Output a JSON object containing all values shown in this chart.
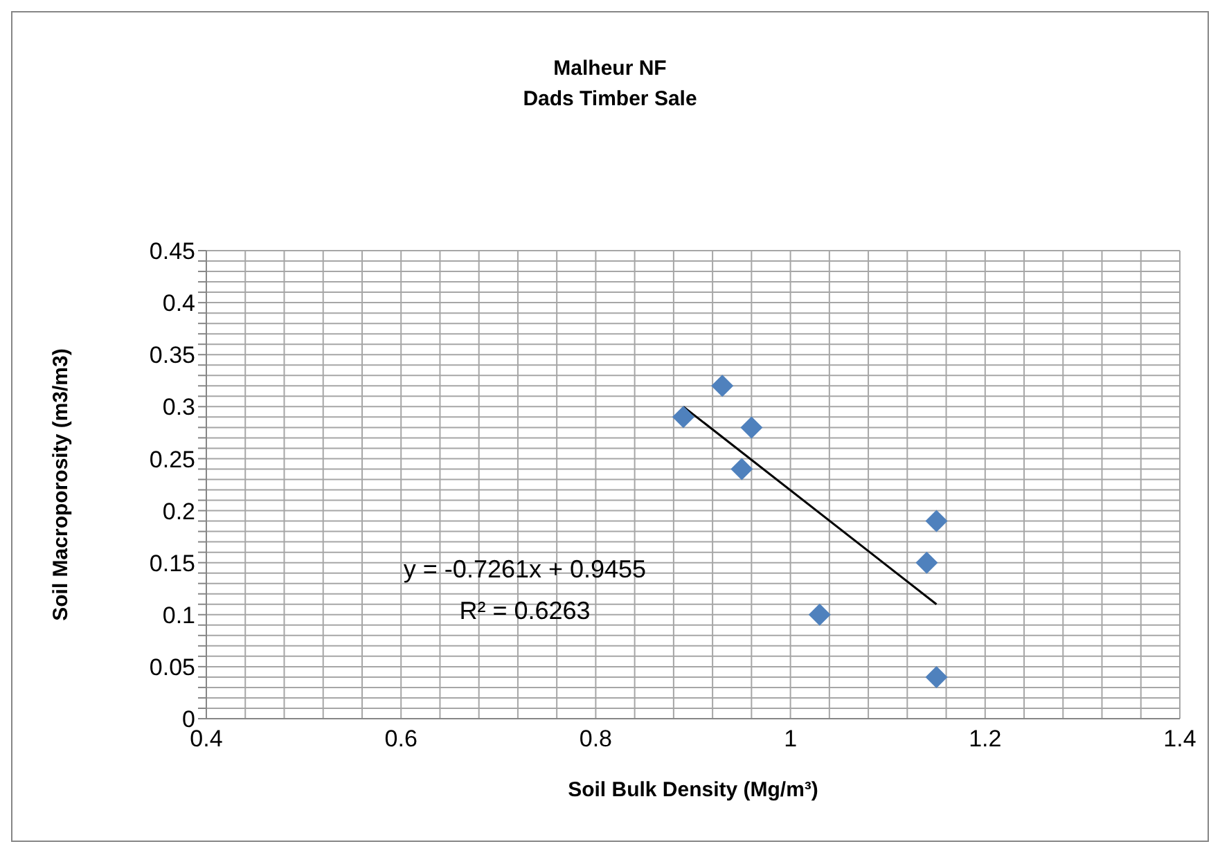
{
  "chart_data": {
    "type": "scatter",
    "title": "Malheur NF",
    "subtitle": "Dads Timber Sale",
    "xlabel": "Soil Bulk Density (Mg/m³)",
    "ylabel": "Soil Macroporosity (m3/m3)",
    "annotations": [
      "y = -0.7261x + 0.9455",
      "R² = 0.6263"
    ],
    "series": [
      {
        "type": "scatter",
        "color": "#4f81bd",
        "x": [
          0.89,
          0.93,
          0.96,
          0.95,
          1.15,
          1.14,
          1.03,
          1.15
        ],
        "values": [
          0.29,
          0.32,
          0.28,
          0.24,
          0.19,
          0.15,
          0.1,
          0.04
        ]
      },
      {
        "type": "line",
        "color": "#000000",
        "marker": "none",
        "x": [
          0.89,
          1.15
        ],
        "values": [
          0.3,
          0.11
        ]
      }
    ],
    "xlim": [
      0.4,
      1.4
    ],
    "xticks": [
      0.4,
      {
        "value": 0.44,
        "label": null
      },
      {
        "value": 0.48,
        "label": null
      },
      {
        "value": 0.52,
        "label": null
      },
      {
        "value": 0.56,
        "label": null
      },
      0.6,
      {
        "value": 0.64,
        "label": null
      },
      {
        "value": 0.68,
        "label": null
      },
      {
        "value": 0.72,
        "label": null
      },
      {
        "value": 0.76,
        "label": null
      },
      0.8,
      {
        "value": 0.84,
        "label": null
      },
      {
        "value": 0.88,
        "label": null
      },
      {
        "value": 0.92,
        "label": null
      },
      {
        "value": 0.96,
        "label": null
      },
      1,
      {
        "value": 1.04,
        "label": null
      },
      {
        "value": 1.08,
        "label": null
      },
      {
        "value": 1.12,
        "label": null
      },
      {
        "value": 1.16,
        "label": null
      },
      1.2,
      {
        "value": 1.24,
        "label": null
      },
      {
        "value": 1.28,
        "label": null
      },
      {
        "value": 1.32,
        "label": null
      },
      {
        "value": 1.36,
        "label": null
      },
      1.4
    ],
    "ylim": [
      0,
      0.45
    ],
    "yticks": [
      0,
      {
        "value": 0.01,
        "label": null
      },
      {
        "value": 0.02,
        "label": null
      },
      {
        "value": 0.03,
        "label": null
      },
      {
        "value": 0.04,
        "label": null
      },
      0.05,
      {
        "value": 0.06,
        "label": null
      },
      {
        "value": 0.07,
        "label": null
      },
      {
        "value": 0.08,
        "label": null
      },
      {
        "value": 0.09,
        "label": null
      },
      0.1,
      {
        "value": 0.11,
        "label": null
      },
      {
        "value": 0.12,
        "label": null
      },
      {
        "value": 0.13,
        "label": null
      },
      {
        "value": 0.14,
        "label": null
      },
      0.15,
      {
        "value": 0.16,
        "label": null
      },
      {
        "value": 0.17,
        "label": null
      },
      {
        "value": 0.18,
        "label": null
      },
      {
        "value": 0.19,
        "label": null
      },
      0.2,
      {
        "value": 0.21,
        "label": null
      },
      {
        "value": 0.22,
        "label": null
      },
      {
        "value": 0.23,
        "label": null
      },
      {
        "value": 0.24,
        "label": null
      },
      0.25,
      {
        "value": 0.26,
        "label": null
      },
      {
        "value": 0.27,
        "label": null
      },
      {
        "value": 0.28,
        "label": null
      },
      {
        "value": 0.29,
        "label": null
      },
      0.3,
      {
        "value": 0.31,
        "label": null
      },
      {
        "value": 0.32,
        "label": null
      },
      {
        "value": 0.33,
        "label": null
      },
      {
        "value": 0.34,
        "label": null
      },
      0.35,
      {
        "value": 0.36,
        "label": null
      },
      {
        "value": 0.37,
        "label": null
      },
      {
        "value": 0.38,
        "label": null
      },
      {
        "value": 0.39,
        "label": null
      },
      0.4,
      {
        "value": 0.41,
        "label": null
      },
      {
        "value": 0.42,
        "label": null
      },
      {
        "value": 0.43,
        "label": null
      },
      {
        "value": 0.44,
        "label": null
      },
      0.45
    ],
    "grid": true,
    "marker": "diamond"
  }
}
